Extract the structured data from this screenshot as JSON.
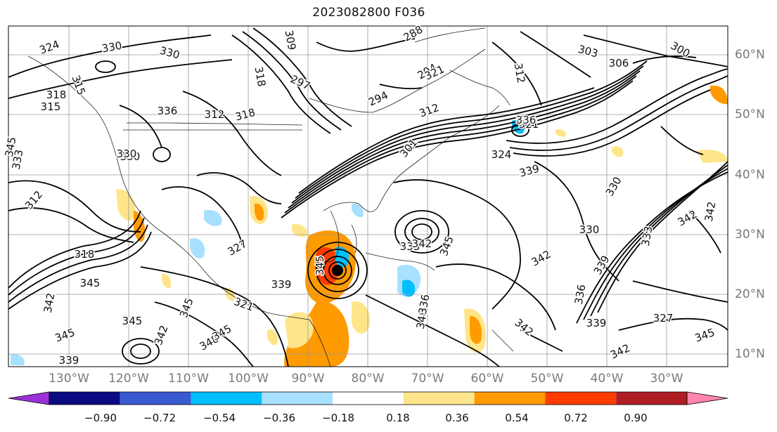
{
  "title": "2023082800 F036",
  "axes": {
    "lon_labels": [
      "130°W",
      "120°W",
      "110°W",
      "100°W",
      "90°W",
      "80°W",
      "70°W",
      "60°W",
      "50°W",
      "40°W",
      "30°W"
    ],
    "lat_labels": [
      "60°N",
      "50°N",
      "40°N",
      "30°N",
      "20°N",
      "10°N"
    ]
  },
  "colorbar": {
    "ticks": [
      "−0.90",
      "−0.72",
      "−0.54",
      "−0.36",
      "−0.18",
      "0.18",
      "0.36",
      "0.54",
      "0.72",
      "0.90"
    ],
    "colors": [
      "#9b30d9",
      "#0a0a82",
      "#3a5ad0",
      "#00bfff",
      "#a8e0ff",
      "#ffffff",
      "#ffe58a",
      "#ff9a00",
      "#ff3c00",
      "#b01e24",
      "#ff85b0"
    ]
  },
  "contour_labels": [
    "324",
    "330",
    "330",
    "297",
    "294",
    "288",
    "294",
    "303",
    "306",
    "309",
    "300",
    "315",
    "318",
    "312",
    "301",
    "312",
    "321",
    "324",
    "330",
    "336",
    "339",
    "321",
    "318",
    "315",
    "330",
    "312",
    "330",
    "336",
    "312",
    "318",
    "333",
    "342",
    "345",
    "348",
    "345",
    "342",
    "345",
    "342",
    "339",
    "327",
    "345",
    "345",
    "342",
    "339",
    "342",
    "345",
    "318",
    "342",
    "345",
    "330",
    "339",
    "336",
    "348",
    "345",
    "327",
    "321",
    "336",
    "342",
    "333",
    "339",
    "345",
    "342",
    "333"
  ],
  "fill_colors": {
    "orange": "#ff9a00",
    "yellow": "#ffe58a",
    "red": "#ff3c00",
    "light_blue": "#a8e0ff",
    "blue": "#00bfff"
  }
}
